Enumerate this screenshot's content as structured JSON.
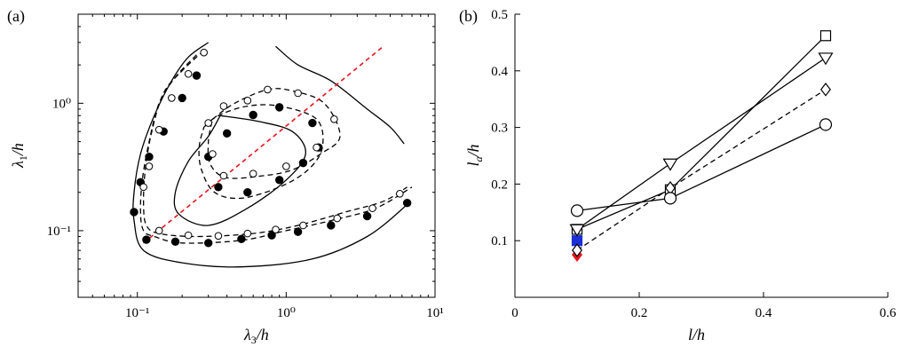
{
  "chart_data": [
    {
      "type": "contour",
      "panel_label": "(a)",
      "xlabel": "λ3/h",
      "ylabel": "λ1/h",
      "xscale": "log",
      "yscale": "log",
      "xlim": [
        0.04,
        10
      ],
      "ylim": [
        0.03,
        5
      ],
      "x_ticks": [
        0.1,
        1,
        10
      ],
      "x_tick_labels": [
        "10⁻¹",
        "10⁰",
        "10¹"
      ],
      "y_ticks": [
        0.1,
        1
      ],
      "y_tick_labels": [
        "10⁻¹",
        "10⁰"
      ],
      "reference_line": {
        "style": "red-dashed",
        "x": [
          0.11,
          4.5
        ],
        "y": [
          0.08,
          2.8
        ]
      },
      "contours": [
        {
          "style": "solid",
          "level": "outer",
          "points": [
            [
              0.3,
              3.0
            ],
            [
              0.22,
              2.3
            ],
            [
              0.17,
              1.5
            ],
            [
              0.13,
              0.8
            ],
            [
              0.105,
              0.4
            ],
            [
              0.095,
              0.2
            ],
            [
              0.095,
              0.12
            ],
            [
              0.11,
              0.07
            ],
            [
              0.2,
              0.056
            ],
            [
              0.5,
              0.052
            ],
            [
              1.5,
              0.06
            ],
            [
              3.5,
              0.09
            ],
            [
              6.5,
              0.16
            ]
          ]
        },
        {
          "style": "solid",
          "level": "outer-right",
          "points": [
            [
              0.85,
              2.8
            ],
            [
              1.2,
              2.0
            ],
            [
              2.0,
              1.5
            ],
            [
              3.5,
              0.9
            ],
            [
              5.0,
              0.65
            ],
            [
              6.2,
              0.48
            ]
          ]
        },
        {
          "style": "solid",
          "level": "inner",
          "points": [
            [
              0.36,
              0.8
            ],
            [
              0.65,
              0.72
            ],
            [
              1.1,
              0.6
            ],
            [
              1.35,
              0.4
            ],
            [
              1.0,
              0.25
            ],
            [
              0.55,
              0.15
            ],
            [
              0.3,
              0.11
            ],
            [
              0.19,
              0.135
            ],
            [
              0.18,
              0.2
            ],
            [
              0.22,
              0.35
            ],
            [
              0.3,
              0.55
            ],
            [
              0.36,
              0.8
            ]
          ]
        },
        {
          "style": "dashed",
          "level": "outer-filled",
          "points": [
            [
              0.25,
              2.4
            ],
            [
              0.18,
              1.6
            ],
            [
              0.14,
              1.0
            ],
            [
              0.12,
              0.5
            ],
            [
              0.108,
              0.25
            ],
            [
              0.105,
              0.14
            ],
            [
              0.11,
              0.1
            ],
            [
              0.13,
              0.09
            ],
            [
              0.2,
              0.08
            ],
            [
              0.5,
              0.084
            ],
            [
              1.0,
              0.1
            ],
            [
              2.0,
              0.12
            ],
            [
              4.0,
              0.15
            ],
            [
              7.0,
              0.22
            ]
          ]
        },
        {
          "style": "dashed",
          "level": "outer-open",
          "points": [
            [
              0.28,
              2.6
            ],
            [
              0.2,
              1.8
            ],
            [
              0.15,
              1.2
            ],
            [
              0.125,
              0.6
            ],
            [
              0.113,
              0.3
            ],
            [
              0.11,
              0.16
            ],
            [
              0.115,
              0.11
            ],
            [
              0.14,
              0.095
            ],
            [
              0.25,
              0.09
            ],
            [
              0.6,
              0.095
            ],
            [
              1.2,
              0.11
            ],
            [
              2.5,
              0.14
            ],
            [
              4.5,
              0.17
            ],
            [
              6.5,
              0.22
            ]
          ]
        },
        {
          "style": "dashed",
          "level": "middle-filled",
          "points": [
            [
              0.28,
              0.65
            ],
            [
              0.35,
              0.8
            ],
            [
              0.55,
              0.95
            ],
            [
              0.9,
              0.95
            ],
            [
              1.6,
              0.75
            ],
            [
              1.75,
              0.45
            ],
            [
              1.4,
              0.3
            ],
            [
              0.9,
              0.22
            ],
            [
              0.5,
              0.18
            ],
            [
              0.33,
              0.2
            ],
            [
              0.27,
              0.3
            ],
            [
              0.26,
              0.45
            ],
            [
              0.28,
              0.65
            ]
          ]
        },
        {
          "style": "dashed",
          "level": "middle-open",
          "points": [
            [
              0.32,
              0.75
            ],
            [
              0.45,
              1.0
            ],
            [
              0.75,
              1.28
            ],
            [
              1.1,
              1.25
            ],
            [
              1.8,
              1.0
            ],
            [
              2.3,
              0.55
            ],
            [
              1.7,
              0.4
            ],
            [
              1.1,
              0.3
            ],
            [
              0.7,
              0.27
            ],
            [
              0.4,
              0.26
            ],
            [
              0.31,
              0.33
            ],
            [
              0.3,
              0.5
            ],
            [
              0.32,
              0.75
            ]
          ]
        }
      ],
      "markers_filled": [
        [
          0.25,
          1.65
        ],
        [
          0.2,
          1.1
        ],
        [
          0.15,
          0.6
        ],
        [
          0.12,
          0.38
        ],
        [
          0.105,
          0.24
        ],
        [
          0.095,
          0.14
        ],
        [
          0.115,
          0.085
        ],
        [
          0.18,
          0.082
        ],
        [
          0.3,
          0.08
        ],
        [
          0.5,
          0.086
        ],
        [
          0.8,
          0.092
        ],
        [
          1.2,
          0.098
        ],
        [
          2.0,
          0.11
        ],
        [
          3.5,
          0.13
        ],
        [
          6.5,
          0.165
        ],
        [
          0.3,
          0.38
        ],
        [
          0.4,
          0.58
        ],
        [
          0.6,
          0.81
        ],
        [
          0.9,
          0.93
        ],
        [
          1.5,
          0.7
        ],
        [
          1.65,
          0.45
        ],
        [
          1.3,
          0.34
        ],
        [
          0.9,
          0.25
        ],
        [
          0.55,
          0.2
        ],
        [
          0.35,
          0.22
        ]
      ],
      "markers_open": [
        [
          0.28,
          2.5
        ],
        [
          0.22,
          1.7
        ],
        [
          0.17,
          1.1
        ],
        [
          0.14,
          0.62
        ],
        [
          0.12,
          0.32
        ],
        [
          0.11,
          0.22
        ],
        [
          0.14,
          0.1
        ],
        [
          0.22,
          0.092
        ],
        [
          0.35,
          0.091
        ],
        [
          0.55,
          0.095
        ],
        [
          0.85,
          0.102
        ],
        [
          1.3,
          0.11
        ],
        [
          2.2,
          0.125
        ],
        [
          3.8,
          0.15
        ],
        [
          5.8,
          0.195
        ],
        [
          0.3,
          0.7
        ],
        [
          0.38,
          0.95
        ],
        [
          0.55,
          1.05
        ],
        [
          0.75,
          1.28
        ],
        [
          1.2,
          1.2
        ],
        [
          2.1,
          0.75
        ],
        [
          1.6,
          0.45
        ],
        [
          1.0,
          0.32
        ],
        [
          0.6,
          0.28
        ],
        [
          0.38,
          0.27
        ],
        [
          0.32,
          0.4
        ]
      ]
    },
    {
      "type": "line",
      "panel_label": "(b)",
      "xlabel": "l/h",
      "ylabel": "la/h",
      "xlim": [
        0,
        0.6
      ],
      "ylim": [
        0,
        0.5
      ],
      "x_ticks": [
        0,
        0.2,
        0.4,
        0.6
      ],
      "x_tick_labels": [
        "0",
        "0.2",
        "0.4",
        "0.6"
      ],
      "y_ticks": [
        0.1,
        0.2,
        0.3,
        0.4,
        0.5
      ],
      "y_tick_labels": [
        "0.1",
        "0.2",
        "0.3",
        "0.4",
        "0.5"
      ],
      "series": [
        {
          "marker": "square",
          "line": "solid",
          "x": [
            0.1,
            0.25,
            0.5
          ],
          "y": [
            0.12,
            0.19,
            0.462
          ]
        },
        {
          "marker": "triangle-down",
          "line": "solid",
          "x": [
            0.1,
            0.25,
            0.5
          ],
          "y": [
            0.12,
            0.236,
            0.423
          ]
        },
        {
          "marker": "diamond",
          "line": "dashed",
          "x": [
            0.1,
            0.25,
            0.5
          ],
          "y": [
            0.083,
            0.193,
            0.367
          ]
        },
        {
          "marker": "circle",
          "line": "solid",
          "x": [
            0.1,
            0.25,
            0.5
          ],
          "y": [
            0.153,
            0.175,
            0.305
          ]
        }
      ],
      "extra_markers": [
        {
          "marker": "diamond",
          "color": "#e8141c",
          "x": 0.1,
          "y": 0.075
        },
        {
          "marker": "square",
          "color": "#1a2fd6",
          "x": 0.1,
          "y": 0.1
        }
      ]
    }
  ]
}
